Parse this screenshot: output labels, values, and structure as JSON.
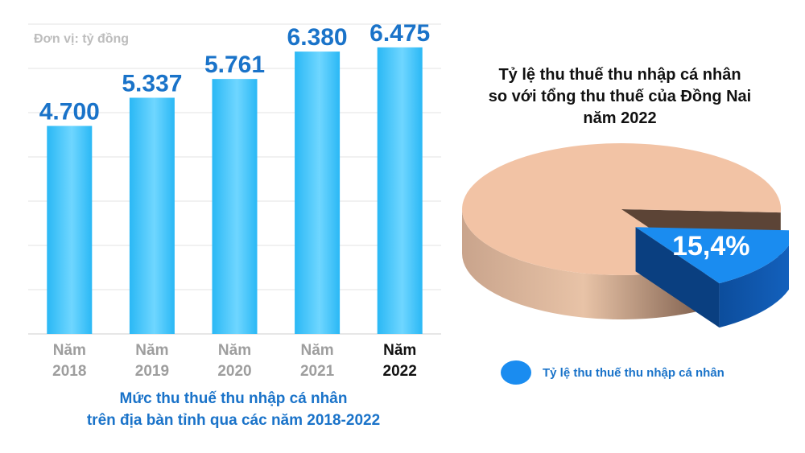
{
  "chart_data": [
    {
      "type": "bar",
      "title": "Mức thu thuế thu nhập cá nhân\ntrên địa bàn tỉnh qua các năm 2018-2022",
      "title_lines": [
        "Mức thu thuế thu nhập cá nhân",
        "trên địa bàn tỉnh qua các năm 2018-2022"
      ],
      "unit_label": "Đơn vị: tỷ đồng",
      "categories": [
        [
          "Năm",
          "2018"
        ],
        [
          "Năm",
          "2019"
        ],
        [
          "Năm",
          "2020"
        ],
        [
          "Năm",
          "2021"
        ],
        [
          "Năm",
          "2022"
        ]
      ],
      "highlight_index": 4,
      "values": [
        4700,
        5337,
        5761,
        6380,
        6475
      ],
      "value_labels": [
        "4.700",
        "5.337",
        "5.761",
        "6.380",
        "6.475"
      ],
      "ylim": [
        0,
        7000
      ],
      "grid": true,
      "colors": {
        "bar": "#2ab8f5",
        "bar_light": "#6fd6ff",
        "value": "#1a73c9",
        "axis": "#9e9e9e",
        "highlight": "#111111"
      }
    },
    {
      "type": "pie",
      "title_lines": [
        "Tỷ lệ thu thuế thu nhập cá nhân",
        "so với tổng thu thuế của Đồng Nai",
        "năm 2022"
      ],
      "slices": [
        {
          "label": "Tỷ lệ thu thuế thu nhập cá nhân",
          "value": 15.4,
          "value_label": "15,4%",
          "color": "#1a8cf0",
          "exploded": true
        },
        {
          "label": "",
          "value": 84.6,
          "value_label": "",
          "color": "#f2c3a5",
          "exploded": false
        }
      ],
      "legend": {
        "position": "bottom",
        "label": "Tỷ lệ thu thuế thu nhập cá nhân",
        "color": "#1a8cf0"
      }
    }
  ]
}
